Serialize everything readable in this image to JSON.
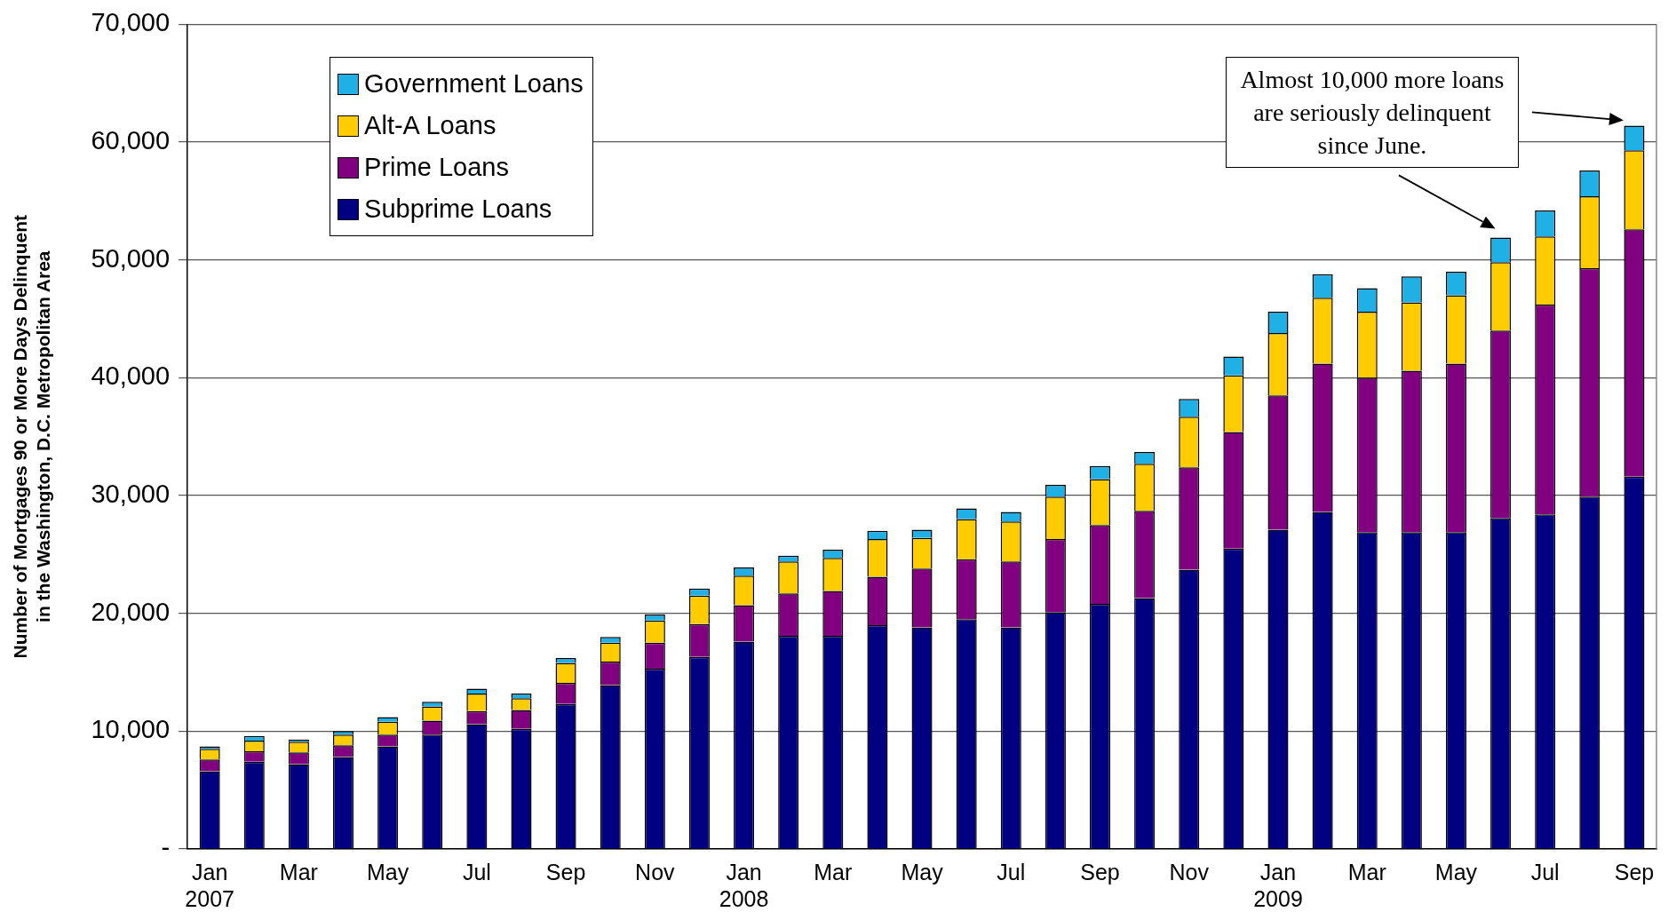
{
  "chart_data": {
    "type": "bar",
    "stacked": true,
    "ylabel": "Number of Mortgages 90 or More Days Delinquent\nin the Washington, D.C. Metropolitan Area",
    "categories": [
      "Jan\n2007",
      null,
      "Mar",
      null,
      "May",
      null,
      "Jul",
      null,
      "Sep",
      null,
      "Nov",
      null,
      "Jan\n2008",
      null,
      "Mar",
      null,
      "May",
      null,
      "Jul",
      null,
      "Sep",
      null,
      "Nov",
      null,
      "Jan\n2009",
      null,
      "Mar",
      null,
      "May",
      null,
      "Jul",
      null,
      "Sep"
    ],
    "series": [
      {
        "name": "Subprime Loans",
        "color": "#000080",
        "values": [
          6600,
          7400,
          7200,
          7800,
          8700,
          9700,
          10600,
          10200,
          12300,
          13900,
          15300,
          16300,
          17600,
          18100,
          18100,
          19000,
          18800,
          19500,
          18800,
          20100,
          20800,
          21300,
          23700,
          25500,
          27100,
          28600,
          26900,
          26900,
          26900,
          28100,
          28400,
          29900,
          31600
        ]
      },
      {
        "name": "Prime Loans",
        "color": "#800080",
        "values": [
          1000,
          900,
          1000,
          1000,
          1000,
          1200,
          1100,
          1600,
          1800,
          2000,
          2200,
          2800,
          3100,
          3600,
          3800,
          4100,
          5000,
          5100,
          5600,
          6200,
          6700,
          7400,
          8700,
          9900,
          11400,
          12600,
          13100,
          13700,
          14300,
          15900,
          17800,
          19400,
          21000
        ]
      },
      {
        "name": "Alt-A Loans",
        "color": "#ffcc00",
        "values": [
          900,
          900,
          900,
          900,
          1100,
          1200,
          1500,
          1000,
          1700,
          1600,
          1900,
          2400,
          2500,
          2700,
          2800,
          3200,
          2600,
          3400,
          3400,
          3600,
          3900,
          4000,
          4300,
          4800,
          5300,
          5600,
          5600,
          5800,
          5800,
          5800,
          5800,
          6100,
          6700
        ]
      },
      {
        "name": "Government Loans",
        "color": "#1fb1e6",
        "values": [
          200,
          400,
          200,
          300,
          400,
          400,
          400,
          400,
          400,
          500,
          500,
          600,
          700,
          500,
          700,
          700,
          700,
          900,
          800,
          1000,
          1100,
          1000,
          1500,
          1600,
          1800,
          2000,
          2000,
          2200,
          2000,
          2100,
          2200,
          2200,
          2100
        ]
      }
    ],
    "ylim": [
      0,
      70000
    ],
    "yticks": [
      {
        "value": 0,
        "label": "-"
      },
      {
        "value": 10000,
        "label": "10,000"
      },
      {
        "value": 20000,
        "label": "20,000"
      },
      {
        "value": 30000,
        "label": "30,000"
      },
      {
        "value": 40000,
        "label": "40,000"
      },
      {
        "value": 50000,
        "label": "50,000"
      },
      {
        "value": 60000,
        "label": "60,000"
      },
      {
        "value": 70000,
        "label": "70,000"
      }
    ],
    "grid": "y",
    "legend": "top left",
    "annotations": [
      "Almost 10,000 more loans are seriously delinquent since June."
    ]
  }
}
